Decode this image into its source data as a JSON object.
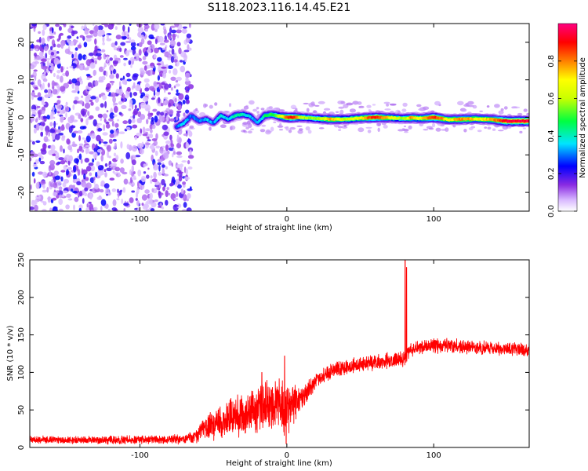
{
  "title": "S118.2023.116.14.45.E21",
  "chart_data": [
    {
      "type": "heatmap",
      "panel": "spectrogram",
      "xlabel": "Height of straight line (km)",
      "ylabel": "Frequency (Hz)",
      "xlim": [
        -175,
        165
      ],
      "ylim": [
        -25,
        25
      ],
      "xticks": [
        -100,
        0,
        100
      ],
      "xtick_labels": [
        "-100",
        "0",
        "100"
      ],
      "yticks": [
        -20,
        -10,
        0,
        10,
        20
      ],
      "ytick_labels": [
        "-20",
        "-10",
        "0",
        "10",
        "20"
      ],
      "noise_region_x": [
        -175,
        -65
      ],
      "noise_level_range": [
        0.05,
        0.25
      ],
      "signal_trace": [
        {
          "x": -75,
          "y": -2.5,
          "amp": 0.3
        },
        {
          "x": -70,
          "y": -1.5,
          "amp": 0.35
        },
        {
          "x": -65,
          "y": 0.5,
          "amp": 0.3
        },
        {
          "x": -60,
          "y": -1.0,
          "amp": 0.3
        },
        {
          "x": -55,
          "y": -0.5,
          "amp": 0.35
        },
        {
          "x": -50,
          "y": -1.5,
          "amp": 0.3
        },
        {
          "x": -45,
          "y": 0.5,
          "amp": 0.4
        },
        {
          "x": -40,
          "y": -0.5,
          "amp": 0.35
        },
        {
          "x": -35,
          "y": 0.5,
          "amp": 0.45
        },
        {
          "x": -30,
          "y": 0.8,
          "amp": 0.4
        },
        {
          "x": -25,
          "y": 0.3,
          "amp": 0.35
        },
        {
          "x": -20,
          "y": -1.5,
          "amp": 0.3
        },
        {
          "x": -15,
          "y": 0.5,
          "amp": 0.45
        },
        {
          "x": -10,
          "y": 0.8,
          "amp": 0.5
        },
        {
          "x": -5,
          "y": 0.3,
          "amp": 0.6
        },
        {
          "x": 0,
          "y": 0.0,
          "amp": 0.85
        },
        {
          "x": 5,
          "y": 0.0,
          "amp": 0.9
        },
        {
          "x": 10,
          "y": 0.0,
          "amp": 0.6
        },
        {
          "x": 20,
          "y": -0.3,
          "amp": 0.55
        },
        {
          "x": 30,
          "y": -0.5,
          "amp": 0.75
        },
        {
          "x": 40,
          "y": -0.5,
          "amp": 0.6
        },
        {
          "x": 50,
          "y": -0.2,
          "amp": 0.7
        },
        {
          "x": 60,
          "y": 0.0,
          "amp": 0.9
        },
        {
          "x": 70,
          "y": -0.1,
          "amp": 0.7
        },
        {
          "x": 80,
          "y": -0.3,
          "amp": 0.55
        },
        {
          "x": 85,
          "y": -0.1,
          "amp": 0.8
        },
        {
          "x": 90,
          "y": -0.3,
          "amp": 0.65
        },
        {
          "x": 100,
          "y": 0.0,
          "amp": 0.9
        },
        {
          "x": 110,
          "y": -0.6,
          "amp": 0.7
        },
        {
          "x": 120,
          "y": -0.5,
          "amp": 0.8
        },
        {
          "x": 130,
          "y": -0.4,
          "amp": 0.7
        },
        {
          "x": 140,
          "y": -0.6,
          "amp": 0.75
        },
        {
          "x": 150,
          "y": -1.0,
          "amp": 0.95
        },
        {
          "x": 165,
          "y": -1.0,
          "amp": 0.95
        }
      ],
      "colorbar": {
        "label": "Normalized spectral amplitude",
        "range": [
          0,
          1
        ],
        "ticks": [
          0.0,
          0.2,
          0.4,
          0.6,
          0.8
        ],
        "tick_labels": [
          "0.0",
          "0.2",
          "0.4",
          "0.6",
          "0.8"
        ]
      }
    },
    {
      "type": "line",
      "panel": "snr",
      "xlabel": "Height of straight line (km)",
      "ylabel": "SNR (10 * v/v)",
      "xlim": [
        -175,
        165
      ],
      "ylim": [
        0,
        250
      ],
      "xticks": [
        -100,
        0,
        100
      ],
      "xtick_labels": [
        "-100",
        "0",
        "100"
      ],
      "yticks": [
        0,
        50,
        100,
        150,
        200,
        250
      ],
      "ytick_labels": [
        "0",
        "50",
        "100",
        "150",
        "200",
        "250"
      ],
      "series": [
        {
          "color": "#ff0000",
          "envelope": [
            {
              "x": -175,
              "mean": 10,
              "noise": 6
            },
            {
              "x": -120,
              "mean": 10,
              "noise": 6
            },
            {
              "x": -70,
              "mean": 11,
              "noise": 7
            },
            {
              "x": -62,
              "mean": 14,
              "noise": 10
            },
            {
              "x": -55,
              "mean": 28,
              "noise": 22
            },
            {
              "x": -45,
              "mean": 35,
              "noise": 28
            },
            {
              "x": -30,
              "mean": 45,
              "noise": 35
            },
            {
              "x": -15,
              "mean": 55,
              "noise": 38
            },
            {
              "x": -5,
              "mean": 55,
              "noise": 40
            },
            {
              "x": 0,
              "mean": 50,
              "noise": 40
            },
            {
              "x": 10,
              "mean": 65,
              "noise": 18
            },
            {
              "x": 20,
              "mean": 90,
              "noise": 12
            },
            {
              "x": 35,
              "mean": 105,
              "noise": 12
            },
            {
              "x": 55,
              "mean": 112,
              "noise": 12
            },
            {
              "x": 75,
              "mean": 117,
              "noise": 12
            },
            {
              "x": 80,
              "mean": 118,
              "noise": 12
            },
            {
              "x": 84,
              "mean": 130,
              "noise": 10
            },
            {
              "x": 100,
              "mean": 137,
              "noise": 12
            },
            {
              "x": 130,
              "mean": 133,
              "noise": 10
            },
            {
              "x": 165,
              "mean": 130,
              "noise": 10
            }
          ],
          "spikes": [
            {
              "x": 80.5,
              "y": 250
            },
            {
              "x": 81.5,
              "y": 240
            },
            {
              "x": -1.5,
              "y": 122
            },
            {
              "x": -0.5,
              "y": 5
            },
            {
              "x": -17,
              "y": 100
            }
          ]
        }
      ]
    }
  ]
}
